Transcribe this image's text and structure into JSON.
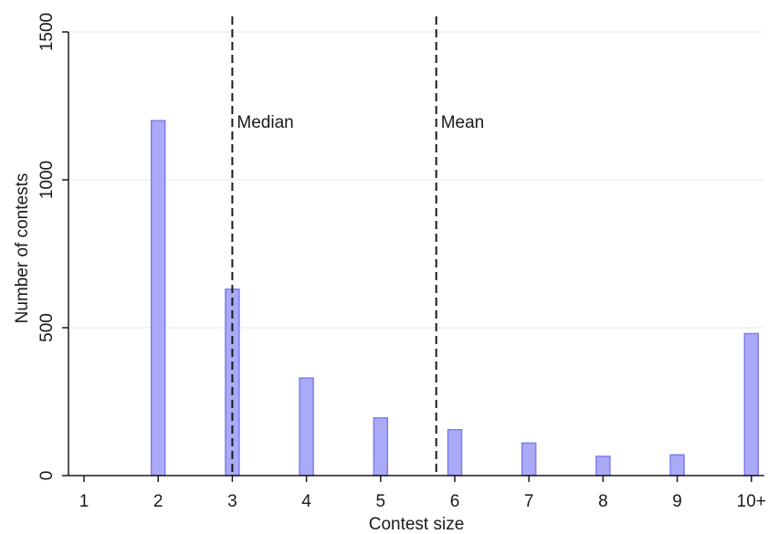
{
  "chart_data": {
    "type": "bar",
    "title": "",
    "xlabel": "Contest size",
    "ylabel": "Number of contests",
    "categories": [
      "1",
      "2",
      "3",
      "4",
      "5",
      "6",
      "7",
      "8",
      "9",
      "10+"
    ],
    "values": [
      0,
      1200,
      630,
      330,
      195,
      155,
      110,
      65,
      70,
      480
    ],
    "ylim": [
      0,
      1500
    ],
    "yticks": [
      "0",
      "500",
      "1000",
      "1500"
    ],
    "grid": true,
    "reference_lines": [
      {
        "label": "Median",
        "x": 3
      },
      {
        "label": "Mean",
        "x": 5.75
      }
    ],
    "colors": {
      "bar_fill": "#aaaaf8",
      "bar_stroke": "#7d7def",
      "gridline": "#e8eef0",
      "axis": "#1a1a1a",
      "reference_line": "#1a1a1a"
    }
  }
}
